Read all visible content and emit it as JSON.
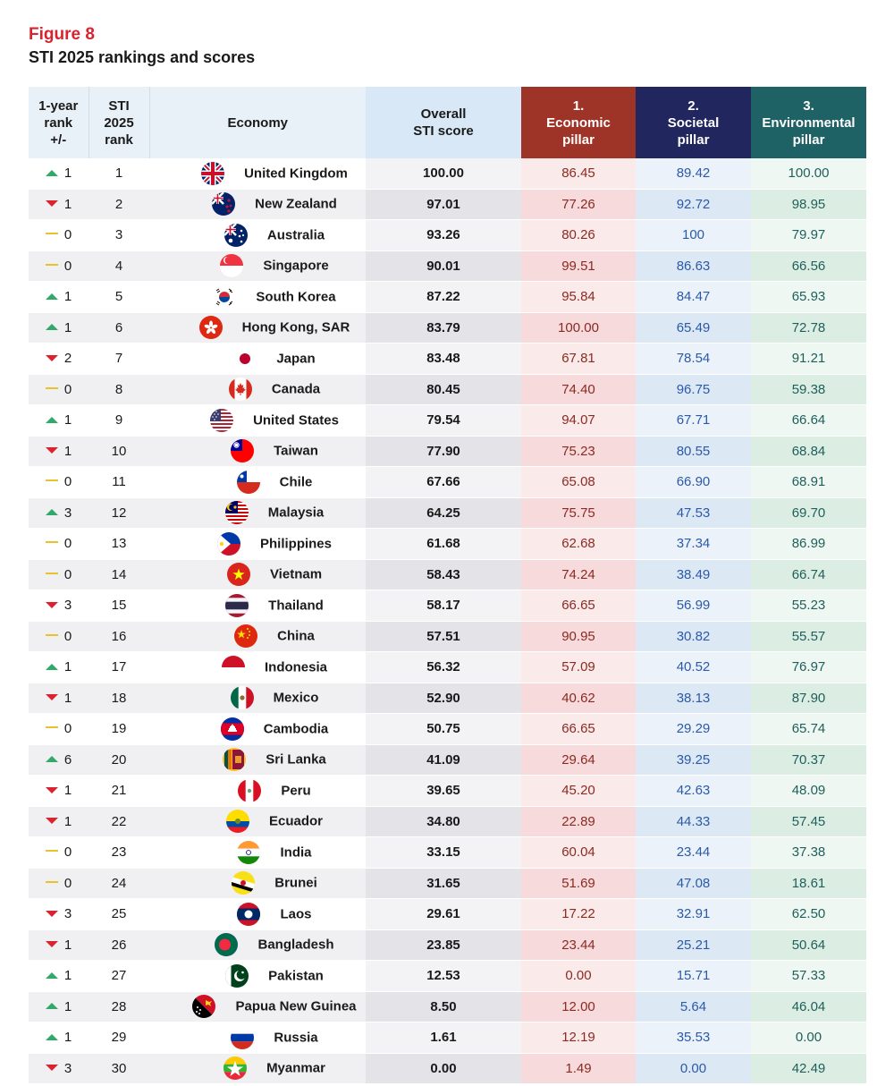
{
  "figure_label": "Figure 8",
  "title": "STI 2025 rankings and scores",
  "headers": {
    "change": [
      "1-year",
      "rank",
      "+/-"
    ],
    "rank": [
      "STI",
      "2025",
      "rank"
    ],
    "economy": "Economy",
    "overall": [
      "Overall",
      "STI score"
    ],
    "economic": [
      "1.",
      "Economic",
      "pillar"
    ],
    "societal": [
      "2.",
      "Societal",
      "pillar"
    ],
    "environmental": [
      "3.",
      "Environmental",
      "pillar"
    ]
  },
  "colors": {
    "up_arrow": "#33a86b",
    "down_arrow": "#d9232e",
    "no_change": "#e8c12e",
    "economic_header": "#9e3428",
    "societal_header": "#22265e",
    "environmental_header": "#1f6266"
  },
  "chart_data": {
    "type": "table",
    "title": "STI 2025 rankings and scores",
    "columns": [
      "1-year rank +/-",
      "STI 2025 rank",
      "Economy",
      "Overall STI score",
      "1. Economic pillar",
      "2. Societal pillar",
      "3. Environmental pillar"
    ],
    "rows": [
      {
        "dir": "up",
        "change": "1",
        "rank": "1",
        "economy": "United Kingdom",
        "flag": "uk-flag-icon",
        "overall": "100.00",
        "economic": "86.45",
        "societal": "89.42",
        "environmental": "100.00"
      },
      {
        "dir": "down",
        "change": "1",
        "rank": "2",
        "economy": "New Zealand",
        "flag": "new-zealand-flag-icon",
        "overall": "97.01",
        "economic": "77.26",
        "societal": "92.72",
        "environmental": "98.95"
      },
      {
        "dir": "same",
        "change": "0",
        "rank": "3",
        "economy": "Australia",
        "flag": "australia-flag-icon",
        "overall": "93.26",
        "economic": "80.26",
        "societal": "100",
        "environmental": "79.97"
      },
      {
        "dir": "same",
        "change": "0",
        "rank": "4",
        "economy": "Singapore",
        "flag": "singapore-flag-icon",
        "overall": "90.01",
        "economic": "99.51",
        "societal": "86.63",
        "environmental": "66.56"
      },
      {
        "dir": "up",
        "change": "1",
        "rank": "5",
        "economy": "South Korea",
        "flag": "south-korea-flag-icon",
        "overall": "87.22",
        "economic": "95.84",
        "societal": "84.47",
        "environmental": "65.93"
      },
      {
        "dir": "up",
        "change": "1",
        "rank": "6",
        "economy": "Hong Kong, SAR",
        "flag": "hong-kong-flag-icon",
        "overall": "83.79",
        "economic": "100.00",
        "societal": "65.49",
        "environmental": "72.78"
      },
      {
        "dir": "down",
        "change": "2",
        "rank": "7",
        "economy": "Japan",
        "flag": "japan-flag-icon",
        "overall": "83.48",
        "economic": "67.81",
        "societal": "78.54",
        "environmental": "91.21"
      },
      {
        "dir": "same",
        "change": "0",
        "rank": "8",
        "economy": "Canada",
        "flag": "canada-flag-icon",
        "overall": "80.45",
        "economic": "74.40",
        "societal": "96.75",
        "environmental": "59.38"
      },
      {
        "dir": "up",
        "change": "1",
        "rank": "9",
        "economy": "United States",
        "flag": "united-states-flag-icon",
        "overall": "79.54",
        "economic": "94.07",
        "societal": "67.71",
        "environmental": "66.64"
      },
      {
        "dir": "down",
        "change": "1",
        "rank": "10",
        "economy": "Taiwan",
        "flag": "taiwan-flag-icon",
        "overall": "77.90",
        "economic": "75.23",
        "societal": "80.55",
        "environmental": "68.84"
      },
      {
        "dir": "same",
        "change": "0",
        "rank": "11",
        "economy": "Chile",
        "flag": "chile-flag-icon",
        "overall": "67.66",
        "economic": "65.08",
        "societal": "66.90",
        "environmental": "68.91"
      },
      {
        "dir": "up",
        "change": "3",
        "rank": "12",
        "economy": "Malaysia",
        "flag": "malaysia-flag-icon",
        "overall": "64.25",
        "economic": "75.75",
        "societal": "47.53",
        "environmental": "69.70"
      },
      {
        "dir": "same",
        "change": "0",
        "rank": "13",
        "economy": "Philippines",
        "flag": "philippines-flag-icon",
        "overall": "61.68",
        "economic": "62.68",
        "societal": "37.34",
        "environmental": "86.99"
      },
      {
        "dir": "same",
        "change": "0",
        "rank": "14",
        "economy": "Vietnam",
        "flag": "vietnam-flag-icon",
        "overall": "58.43",
        "economic": "74.24",
        "societal": "38.49",
        "environmental": "66.74"
      },
      {
        "dir": "down",
        "change": "3",
        "rank": "15",
        "economy": "Thailand",
        "flag": "thailand-flag-icon",
        "overall": "58.17",
        "economic": "66.65",
        "societal": "56.99",
        "environmental": "55.23"
      },
      {
        "dir": "same",
        "change": "0",
        "rank": "16",
        "economy": "China",
        "flag": "china-flag-icon",
        "overall": "57.51",
        "economic": "90.95",
        "societal": "30.82",
        "environmental": "55.57"
      },
      {
        "dir": "up",
        "change": "1",
        "rank": "17",
        "economy": "Indonesia",
        "flag": "indonesia-flag-icon",
        "overall": "56.32",
        "economic": "57.09",
        "societal": "40.52",
        "environmental": "76.97"
      },
      {
        "dir": "down",
        "change": "1",
        "rank": "18",
        "economy": "Mexico",
        "flag": "mexico-flag-icon",
        "overall": "52.90",
        "economic": "40.62",
        "societal": "38.13",
        "environmental": "87.90"
      },
      {
        "dir": "same",
        "change": "0",
        "rank": "19",
        "economy": "Cambodia",
        "flag": "cambodia-flag-icon",
        "overall": "50.75",
        "economic": "66.65",
        "societal": "29.29",
        "environmental": "65.74"
      },
      {
        "dir": "up",
        "change": "6",
        "rank": "20",
        "economy": "Sri Lanka",
        "flag": "sri-lanka-flag-icon",
        "overall": "41.09",
        "economic": "29.64",
        "societal": "39.25",
        "environmental": "70.37"
      },
      {
        "dir": "down",
        "change": "1",
        "rank": "21",
        "economy": "Peru",
        "flag": "peru-flag-icon",
        "overall": "39.65",
        "economic": "45.20",
        "societal": "42.63",
        "environmental": "48.09"
      },
      {
        "dir": "down",
        "change": "1",
        "rank": "22",
        "economy": "Ecuador",
        "flag": "ecuador-flag-icon",
        "overall": "34.80",
        "economic": "22.89",
        "societal": "44.33",
        "environmental": "57.45"
      },
      {
        "dir": "same",
        "change": "0",
        "rank": "23",
        "economy": "India",
        "flag": "india-flag-icon",
        "overall": "33.15",
        "economic": "60.04",
        "societal": "23.44",
        "environmental": "37.38"
      },
      {
        "dir": "same",
        "change": "0",
        "rank": "24",
        "economy": "Brunei",
        "flag": "brunei-flag-icon",
        "overall": "31.65",
        "economic": "51.69",
        "societal": "47.08",
        "environmental": "18.61"
      },
      {
        "dir": "down",
        "change": "3",
        "rank": "25",
        "economy": "Laos",
        "flag": "laos-flag-icon",
        "overall": "29.61",
        "economic": "17.22",
        "societal": "32.91",
        "environmental": "62.50"
      },
      {
        "dir": "down",
        "change": "1",
        "rank": "26",
        "economy": "Bangladesh",
        "flag": "bangladesh-flag-icon",
        "overall": "23.85",
        "economic": "23.44",
        "societal": "25.21",
        "environmental": "50.64"
      },
      {
        "dir": "up",
        "change": "1",
        "rank": "27",
        "economy": "Pakistan",
        "flag": "pakistan-flag-icon",
        "overall": "12.53",
        "economic": "0.00",
        "societal": "15.71",
        "environmental": "57.33"
      },
      {
        "dir": "up",
        "change": "1",
        "rank": "28",
        "economy": "Papua New Guinea",
        "flag": "papua-new-guinea-flag-icon",
        "overall": "8.50",
        "economic": "12.00",
        "societal": "5.64",
        "environmental": "46.04"
      },
      {
        "dir": "up",
        "change": "1",
        "rank": "29",
        "economy": "Russia",
        "flag": "russia-flag-icon",
        "overall": "1.61",
        "economic": "12.19",
        "societal": "35.53",
        "environmental": "0.00"
      },
      {
        "dir": "down",
        "change": "3",
        "rank": "30",
        "economy": "Myanmar",
        "flag": "myanmar-flag-icon",
        "overall": "0.00",
        "economic": "1.49",
        "societal": "0.00",
        "environmental": "42.49"
      }
    ]
  }
}
